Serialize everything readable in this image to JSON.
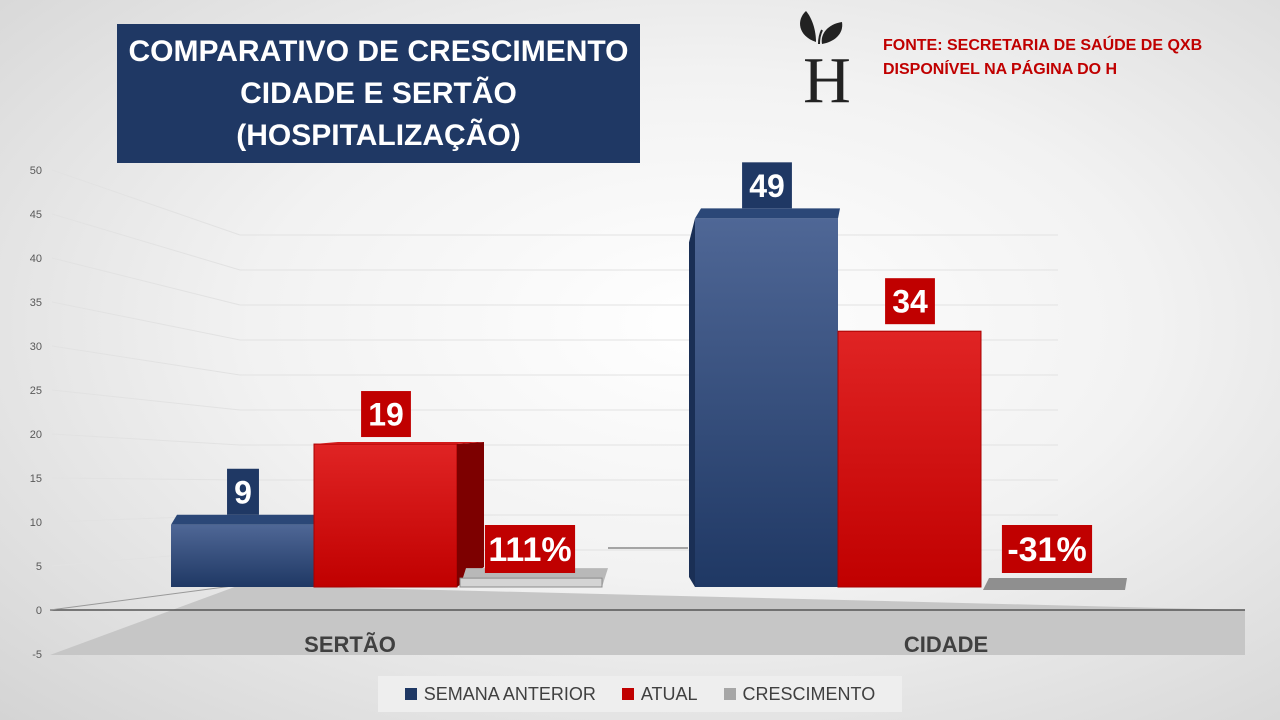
{
  "title": {
    "line1": "COMPARATIVO  DE CRESCIMENTO",
    "line2": "CIDADE E SERTÃO",
    "line3": "(HOSPITALIZAÇÃO)"
  },
  "source": {
    "line1": "FONTE: SECRETARIA DE SAÚDE DE QXB",
    "line2": "DISPONÍVEL NA PÁGINA DO H"
  },
  "logo": {
    "letter": "H"
  },
  "colors": {
    "semana_anterior": "#1f3864",
    "atual": "#c00000",
    "crescimento": "#a6a6a6",
    "title_bg": "#1f3864",
    "source_text": "#c00000"
  },
  "chart_data": {
    "type": "bar",
    "categories": [
      "SERTÃO",
      "CIDADE"
    ],
    "series": [
      {
        "name": "SEMANA ANTERIOR",
        "values": [
          9,
          49
        ],
        "labels": [
          "9",
          "49"
        ]
      },
      {
        "name": "ATUAL",
        "values": [
          19,
          34
        ],
        "labels": [
          "19",
          "34"
        ]
      },
      {
        "name": "CRESCIMENTO",
        "values": [
          1.11,
          -0.31
        ],
        "labels": [
          "111%",
          "-31%"
        ]
      }
    ],
    "y_ticks": [
      -5,
      0,
      5,
      10,
      15,
      20,
      25,
      30,
      35,
      40,
      45,
      50
    ],
    "ylim": [
      -5,
      50
    ],
    "grid": true,
    "legend_position": "bottom",
    "xlabel": "",
    "ylabel": "",
    "title": "COMPARATIVO  DE CRESCIMENTO CIDADE E SERTÃO (HOSPITALIZAÇÃO)"
  }
}
